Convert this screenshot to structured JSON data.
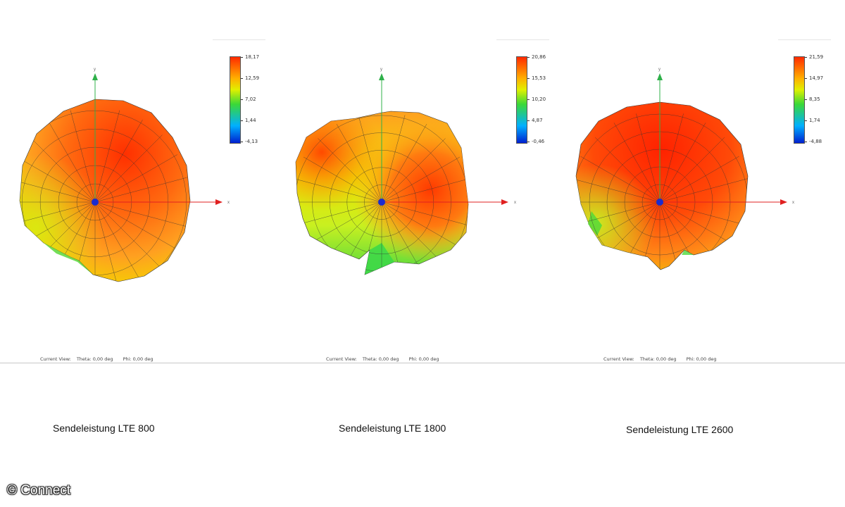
{
  "colors": {
    "scale_top": "#ff2a00",
    "scale_mid_high": "#ffe800",
    "scale_mid": "#3ad838",
    "scale_low": "#00b0ff",
    "scale_bottom": "#0020d0",
    "axis_up": "#2fb04a",
    "axis_right": "#e02020",
    "center_dot": "#1a2bd0"
  },
  "panels": [
    {
      "caption": "Sendeleistung LTE 800",
      "colorbar_labels": [
        "18,17",
        "12,59",
        "7,02",
        "1,44",
        "-4,13"
      ],
      "axis_up_label": "y",
      "axis_right_label": "x",
      "status": {
        "view": "Current View:",
        "theta": "Theta: 0,00 deg",
        "phi": "Phi: 0,00 deg"
      }
    },
    {
      "caption": "Sendeleistung LTE 1800",
      "colorbar_labels": [
        "20,86",
        "15,53",
        "10,20",
        "4,87",
        "-0,46"
      ],
      "axis_up_label": "y",
      "axis_right_label": "x",
      "status": {
        "view": "Current View:",
        "theta": "Theta: 0,00 deg",
        "phi": "Phi: 0,00 deg"
      }
    },
    {
      "caption": "Sendeleistung LTE 2600",
      "colorbar_labels": [
        "21,59",
        "14,97",
        "8,35",
        "1,74",
        "-4,88"
      ],
      "axis_up_label": "y",
      "axis_right_label": "x",
      "status": {
        "view": "Current View:",
        "theta": "Theta: 0,00 deg",
        "phi": "Phi: 0,00 deg"
      }
    }
  ],
  "copyright": "© Connect"
}
